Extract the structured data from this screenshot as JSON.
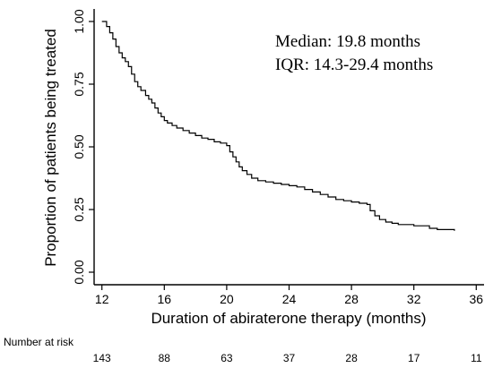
{
  "chart_data": {
    "type": "line",
    "step": true,
    "xlabel": "Duration of abiraterone therapy (months)",
    "ylabel": "Proportion of patients being treated",
    "xlim": [
      11.5,
      36.5
    ],
    "ylim": [
      -0.05,
      1.05
    ],
    "x_ticks": [
      12,
      16,
      20,
      24,
      28,
      32,
      36
    ],
    "y_ticks": [
      0.0,
      0.25,
      0.5,
      0.75,
      1.0
    ],
    "y_tick_labels": [
      "0.00",
      "0.25",
      "0.50",
      "0.75",
      "1.00"
    ],
    "annotations": [
      "Median: 19.8 months",
      "IQR: 14.3-29.4 months"
    ],
    "series": [
      {
        "x": [
          12.0,
          12.3,
          12.5,
          12.7,
          12.9,
          13.1,
          13.3,
          13.5,
          13.7,
          13.9,
          14.1,
          14.3,
          14.5,
          14.8,
          15.0,
          15.2,
          15.4,
          15.6,
          15.8,
          16.0,
          16.2,
          16.5,
          16.8,
          17.2,
          17.6,
          18.0,
          18.4,
          18.8,
          19.2,
          19.6,
          20.0,
          20.2,
          20.4,
          20.6,
          20.8,
          21.0,
          21.3,
          21.6,
          22.0,
          22.5,
          23.0,
          23.5,
          24.0,
          24.5,
          25.0,
          25.5,
          26.0,
          26.5,
          27.0,
          27.5,
          28.0,
          28.5,
          29.0,
          29.2,
          29.5,
          29.8,
          30.2,
          30.6,
          31.0,
          32.0,
          33.0,
          33.5,
          34.6
        ],
        "y": [
          1.0,
          0.98,
          0.955,
          0.93,
          0.9,
          0.875,
          0.855,
          0.84,
          0.82,
          0.79,
          0.76,
          0.74,
          0.725,
          0.705,
          0.69,
          0.675,
          0.655,
          0.635,
          0.62,
          0.605,
          0.595,
          0.585,
          0.575,
          0.565,
          0.555,
          0.545,
          0.535,
          0.53,
          0.52,
          0.515,
          0.505,
          0.48,
          0.46,
          0.44,
          0.42,
          0.405,
          0.39,
          0.375,
          0.365,
          0.36,
          0.355,
          0.35,
          0.345,
          0.34,
          0.33,
          0.32,
          0.31,
          0.3,
          0.29,
          0.285,
          0.28,
          0.275,
          0.27,
          0.245,
          0.225,
          0.21,
          0.2,
          0.195,
          0.19,
          0.185,
          0.175,
          0.17,
          0.165
        ]
      }
    ],
    "risk_table": {
      "title": "Number at risk",
      "x": [
        12,
        16,
        20,
        24,
        28,
        32,
        36
      ],
      "values": [
        "143",
        "88",
        "63",
        "37",
        "28",
        "17",
        "11"
      ]
    }
  }
}
